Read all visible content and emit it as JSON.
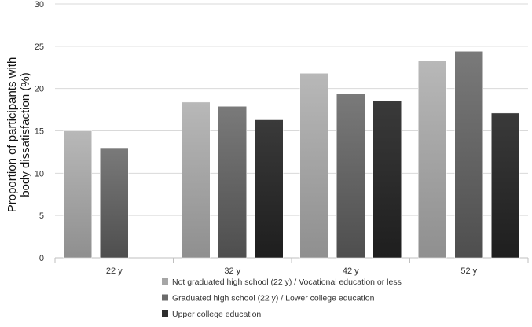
{
  "chart_data": {
    "type": "bar",
    "title": "",
    "xlabel": "",
    "ylabel": "Proportion of participants with body dissatisfaction (%)",
    "ylabel_lines": [
      "Proportion of participants with",
      "body dissatisfaction (%)"
    ],
    "ylim": [
      0,
      30
    ],
    "yticks": [
      0,
      5,
      10,
      15,
      20,
      25,
      30
    ],
    "categories": [
      "22 y",
      "32 y",
      "42 y",
      "52 y"
    ],
    "grid": true,
    "legend_position": "bottom-right",
    "series": [
      {
        "name": "Not graduated high school (22 y) / Vocational education or less",
        "color": "#a6a6a6",
        "values": [
          15.0,
          18.4,
          21.8,
          23.3
        ]
      },
      {
        "name": "Graduated high school (22 y) / Lower college education",
        "color": "#6b6b6b",
        "values": [
          13.0,
          17.9,
          19.4,
          24.4
        ]
      },
      {
        "name": "Upper college education",
        "color": "#2e2e2e",
        "values": [
          null,
          16.3,
          18.6,
          17.1
        ]
      }
    ]
  }
}
